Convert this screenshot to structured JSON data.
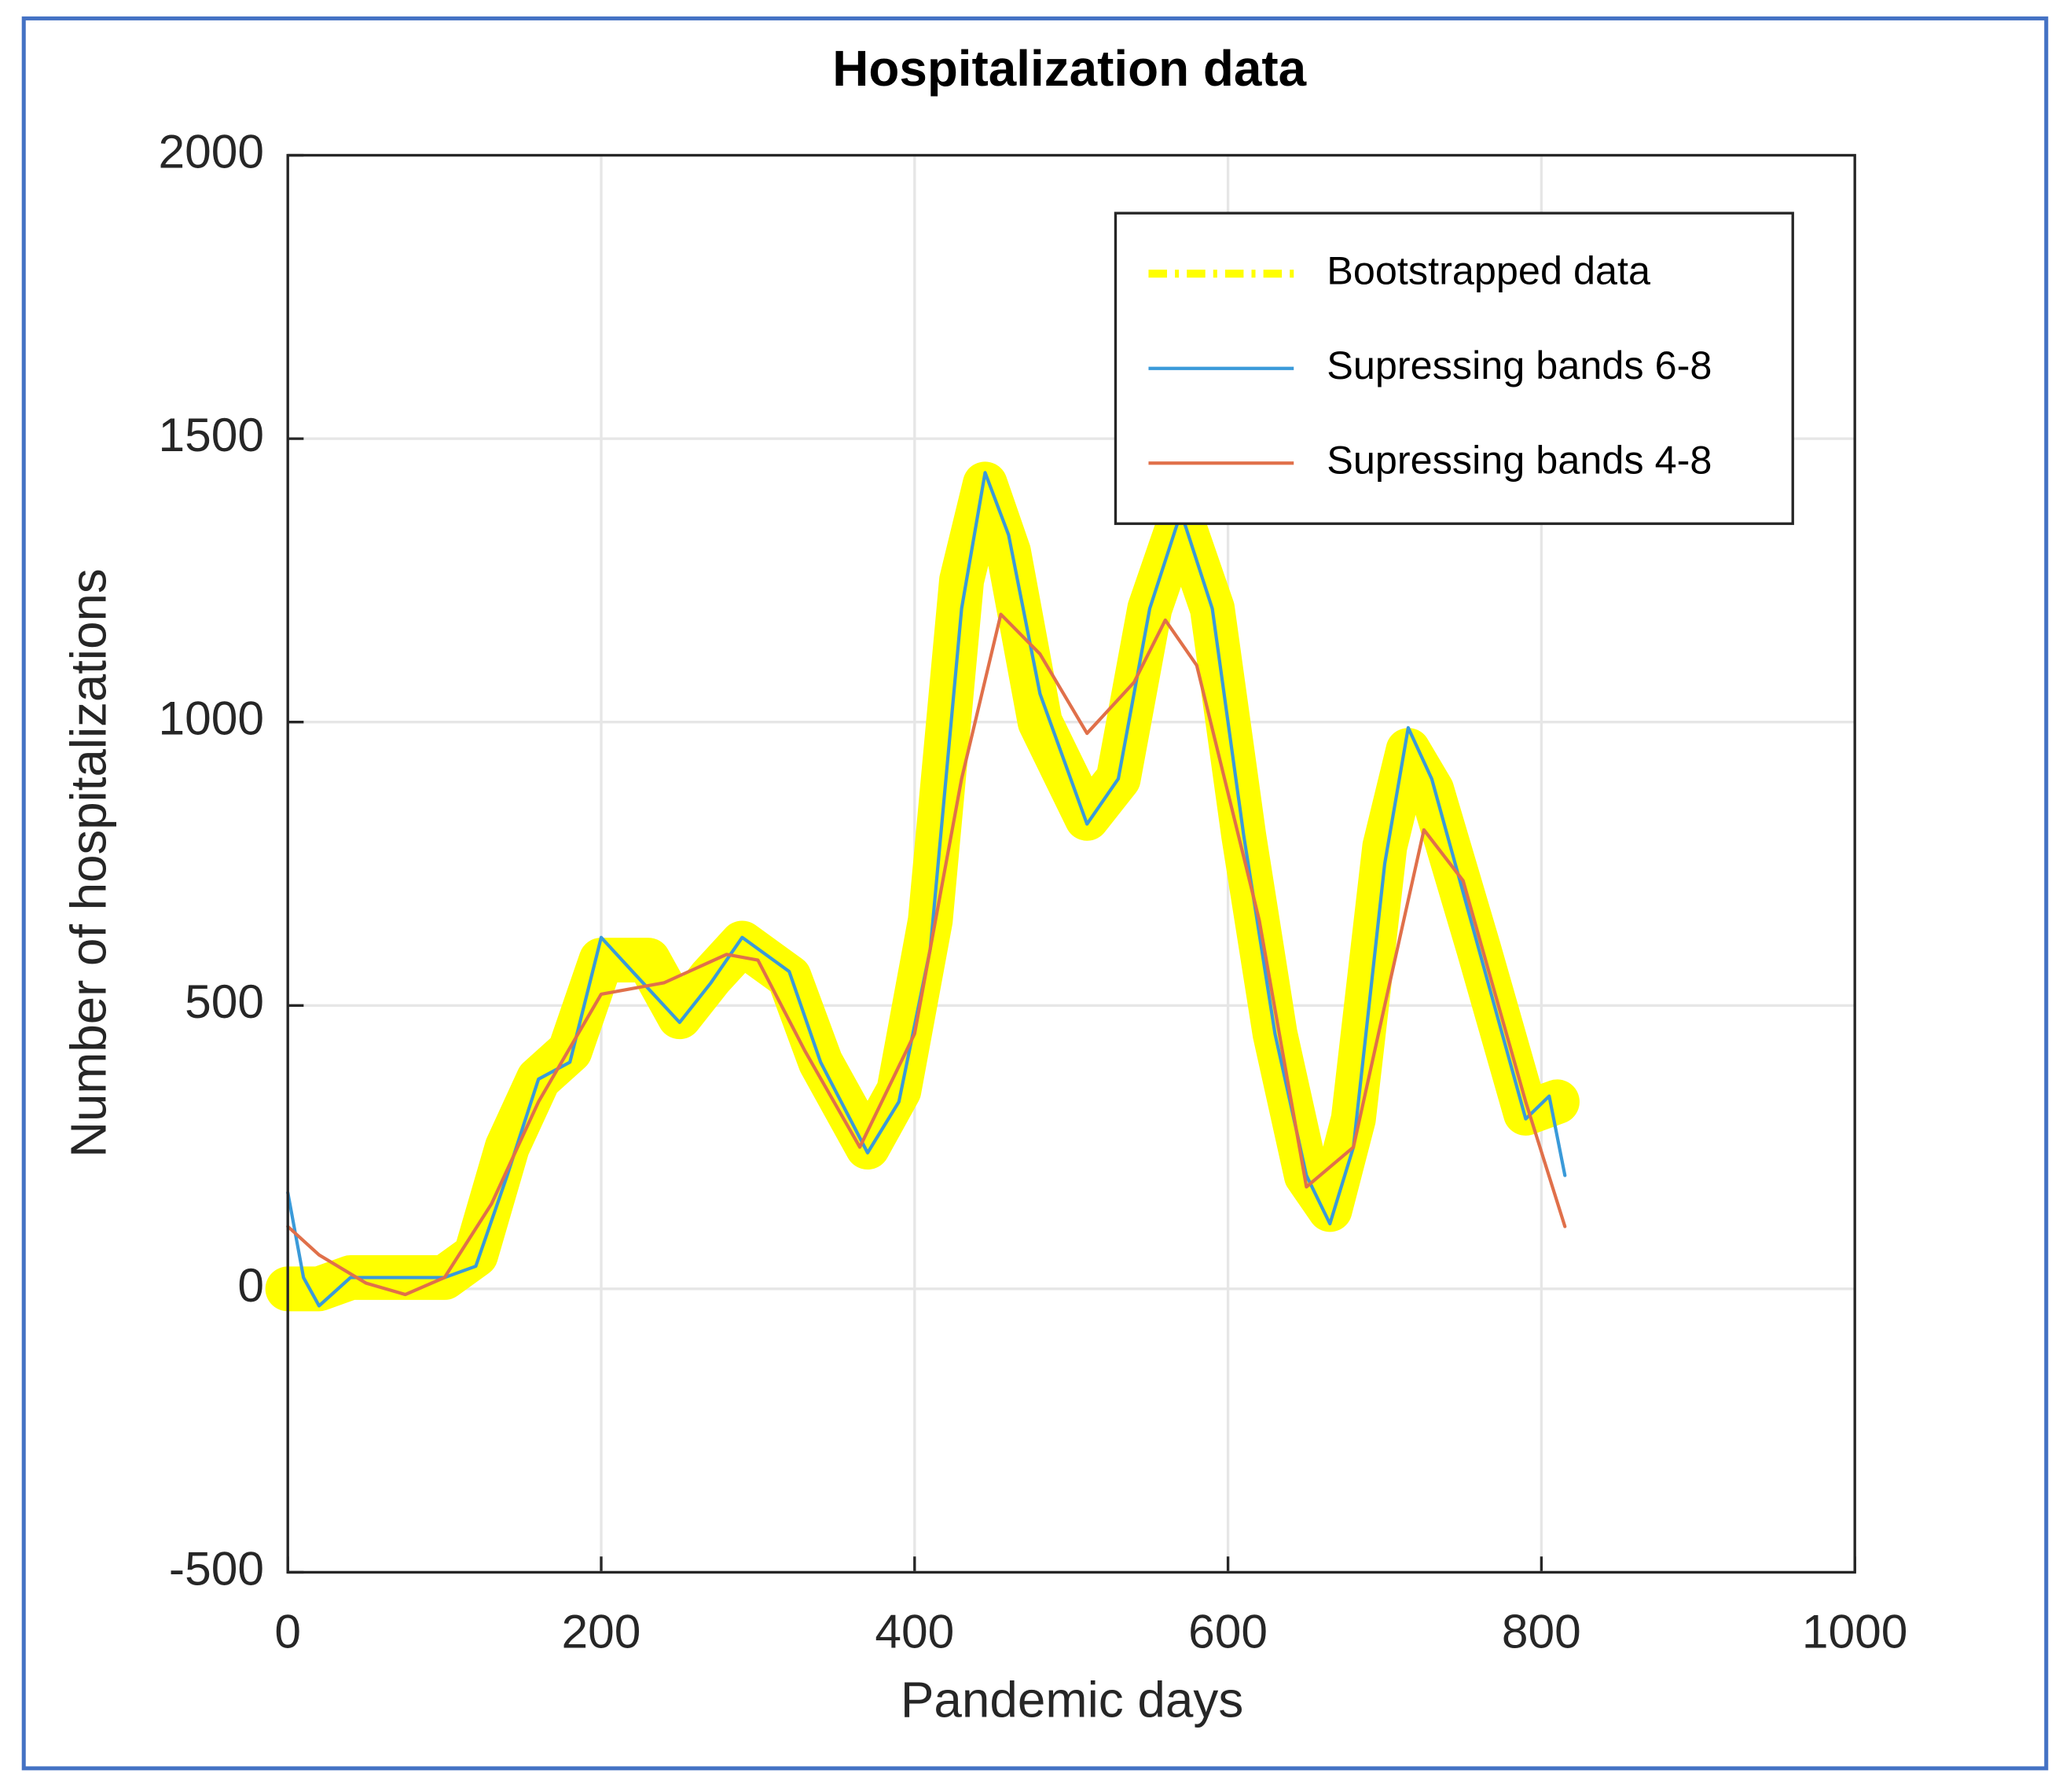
{
  "chart_data": {
    "type": "line",
    "title": "Hospitalization data",
    "x_label": "Pandemic days",
    "y_label": "Number of hospitalizations",
    "xlim": [
      0,
      1000
    ],
    "ylim": [
      -500,
      2000
    ],
    "xticks": [
      0,
      200,
      400,
      600,
      800,
      1000
    ],
    "yticks": [
      -500,
      0,
      500,
      1000,
      1500,
      2000
    ],
    "grid": true,
    "legend_position": "upper right",
    "series": [
      {
        "name": "Bootstrapped data",
        "color": "#ffff00",
        "x": [
          0,
          20,
          40,
          100,
          120,
          140,
          160,
          180,
          200,
          230,
          250,
          270,
          290,
          320,
          340,
          370,
          390,
          410,
          430,
          445,
          460,
          480,
          510,
          530,
          550,
          570,
          590,
          610,
          630,
          650,
          665,
          680,
          700,
          715,
          730,
          760,
          790,
          810
        ],
        "values": [
          0,
          0,
          20,
          20,
          60,
          250,
          370,
          420,
          580,
          580,
          480,
          550,
          610,
          550,
          400,
          250,
          350,
          650,
          1250,
          1420,
          1300,
          1000,
          830,
          900,
          1200,
          1360,
          1200,
          800,
          450,
          200,
          140,
          300,
          780,
          950,
          880,
          600,
          310,
          330
        ]
      },
      {
        "name": "Supressing bands 6-8",
        "color": "#3a9ad9",
        "x": [
          0,
          10,
          20,
          40,
          60,
          80,
          100,
          120,
          140,
          160,
          180,
          200,
          220,
          250,
          270,
          290,
          320,
          340,
          370,
          390,
          410,
          430,
          445,
          460,
          480,
          510,
          530,
          550,
          570,
          590,
          610,
          630,
          650,
          665,
          680,
          700,
          715,
          730,
          760,
          790,
          805,
          815
        ],
        "values": [
          170,
          20,
          -30,
          20,
          20,
          20,
          20,
          40,
          200,
          370,
          400,
          620,
          560,
          470,
          540,
          620,
          560,
          400,
          240,
          330,
          600,
          1200,
          1440,
          1330,
          1050,
          820,
          900,
          1200,
          1370,
          1200,
          800,
          450,
          200,
          115,
          250,
          750,
          990,
          900,
          600,
          300,
          340,
          200
        ]
      },
      {
        "name": "Supressing bands 4-8",
        "color": "#e0704a",
        "x": [
          0,
          20,
          50,
          75,
          100,
          130,
          160,
          200,
          240,
          280,
          300,
          330,
          365,
          400,
          430,
          455,
          480,
          510,
          540,
          560,
          580,
          620,
          650,
          680,
          700,
          725,
          750,
          790,
          815
        ],
        "values": [
          110,
          60,
          10,
          -10,
          20,
          150,
          330,
          520,
          540,
          590,
          580,
          420,
          250,
          450,
          900,
          1190,
          1120,
          980,
          1070,
          1180,
          1100,
          650,
          180,
          250,
          500,
          810,
          720,
          330,
          110
        ]
      }
    ]
  }
}
